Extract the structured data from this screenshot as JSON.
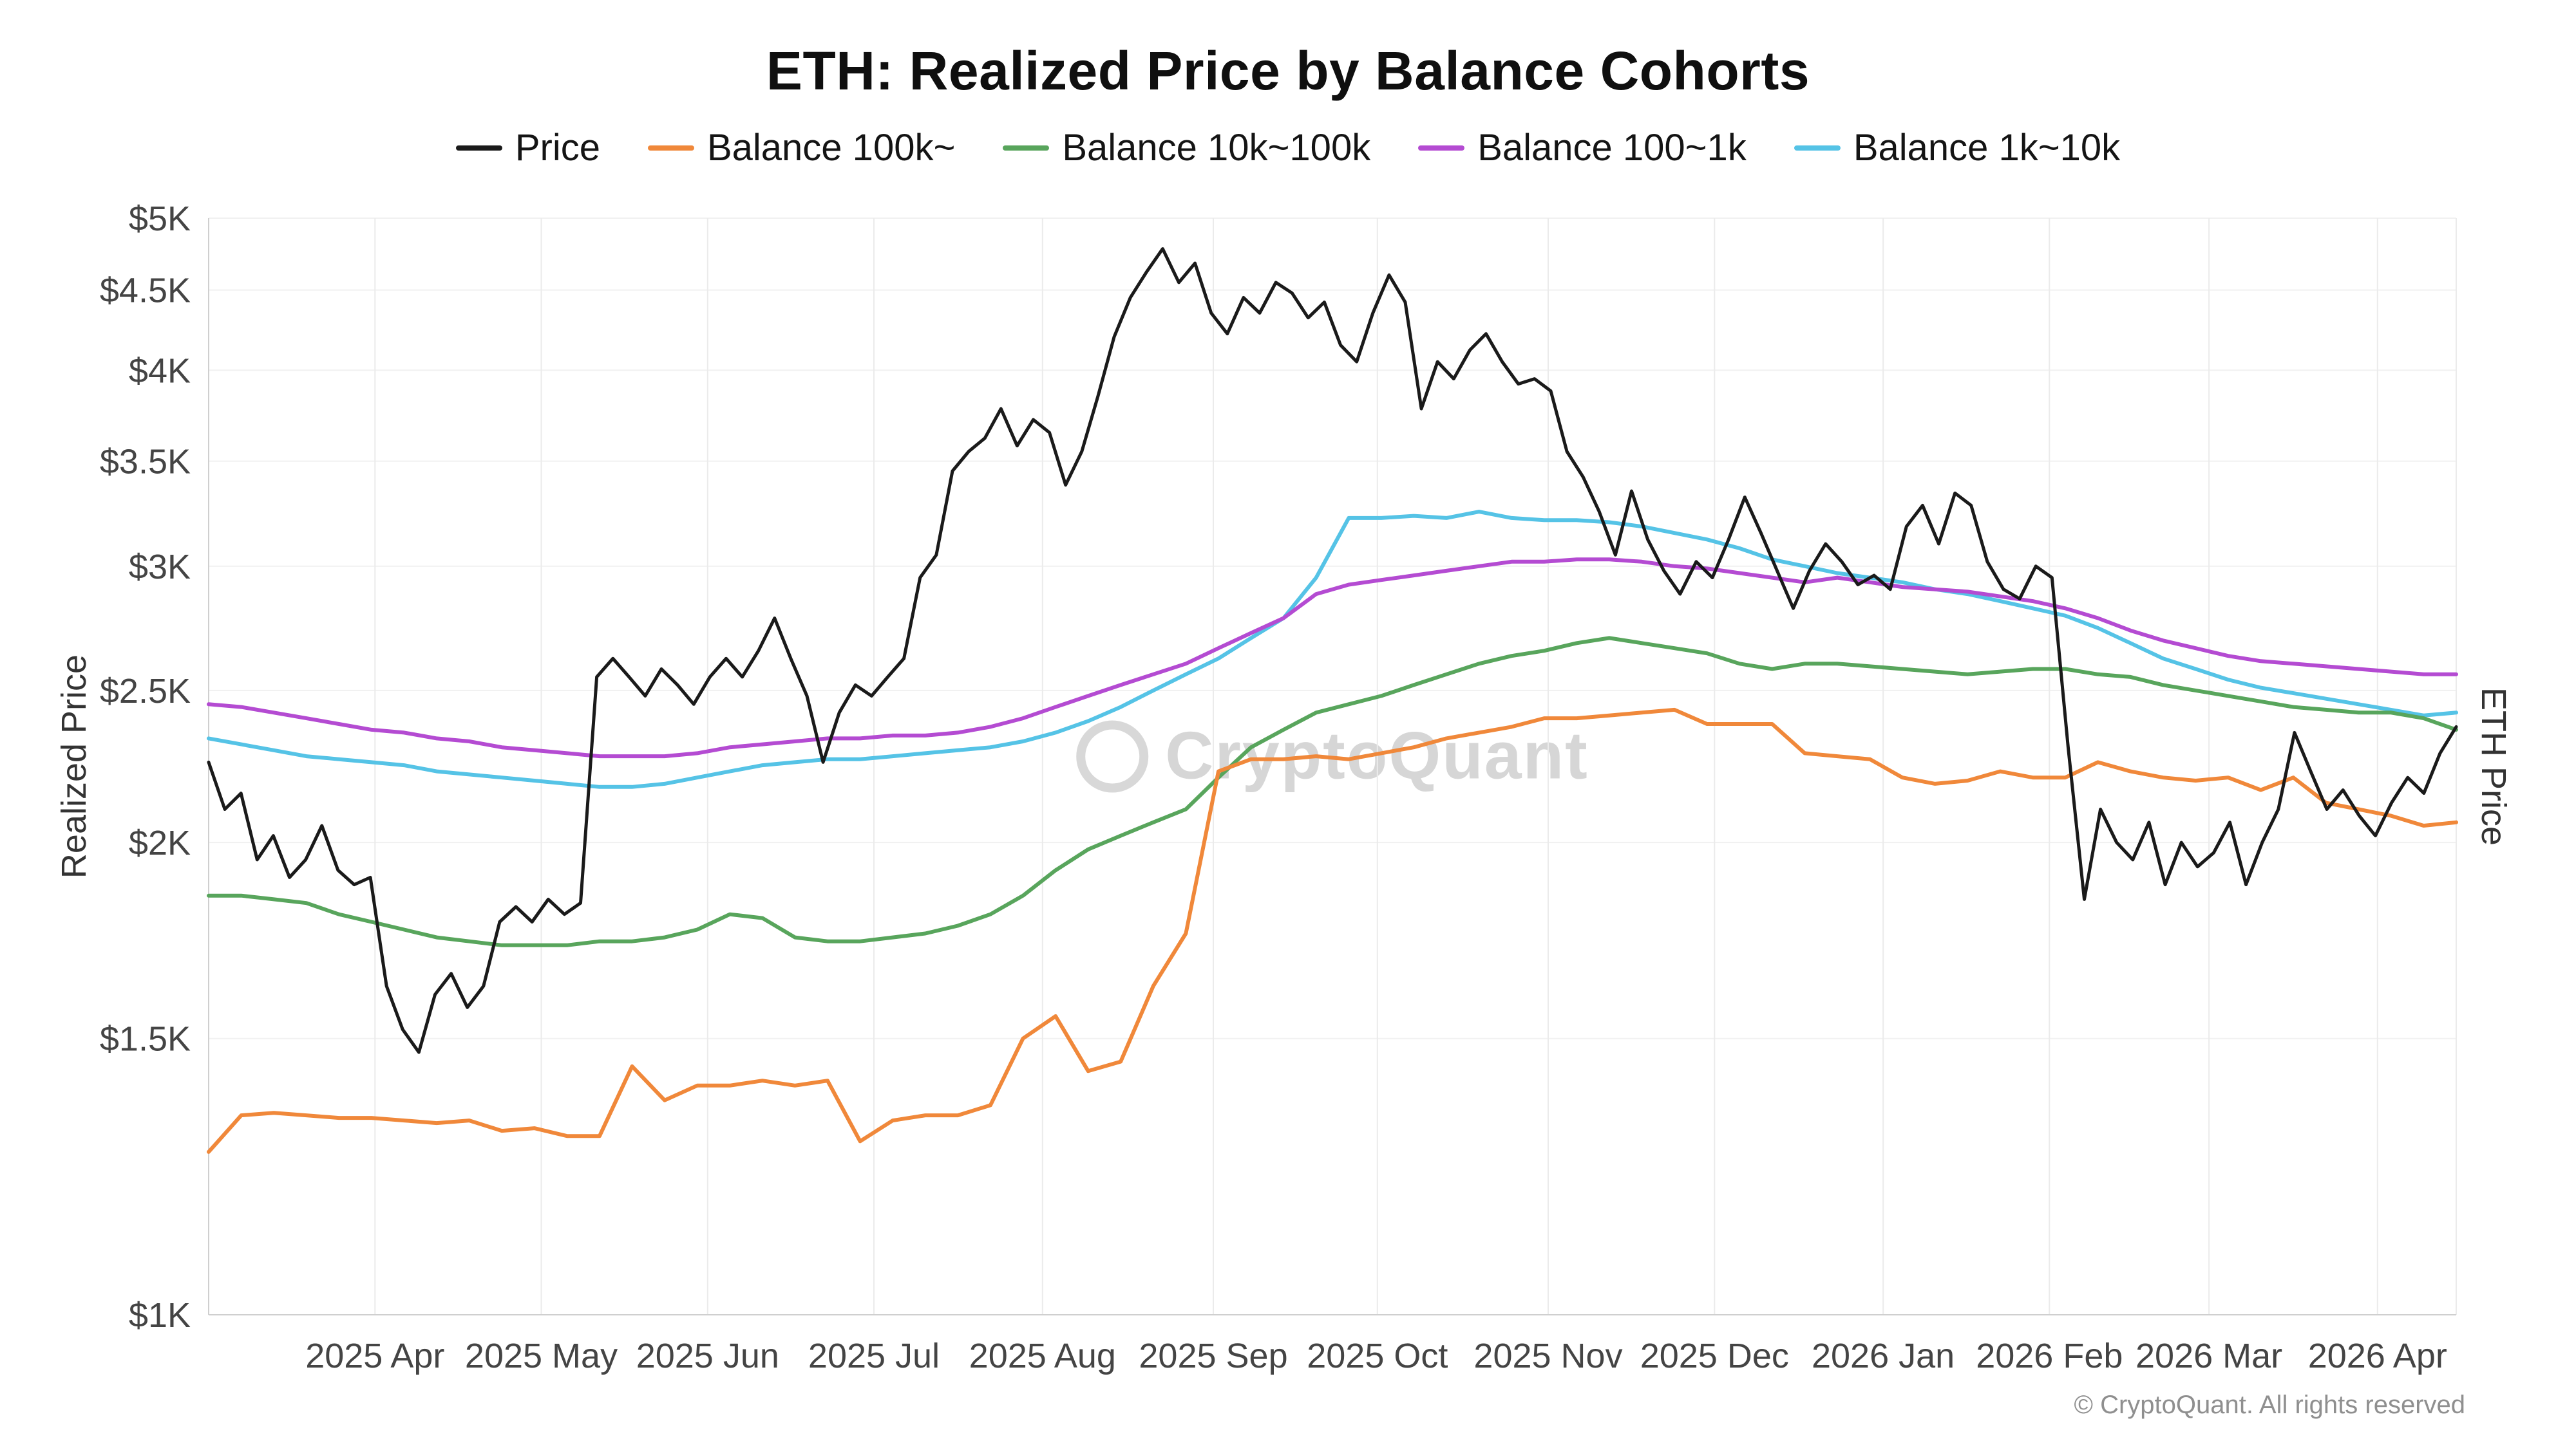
{
  "page": {
    "watermark": "CryptoQuant",
    "footer": "© CryptoQuant. All rights reserved"
  },
  "chart_data": {
    "type": "line",
    "title": "ETH: Realized Price by Balance Cohorts",
    "ylabel": "Realized Price",
    "ylabel_right": "ETH Price",
    "xlabel": "",
    "y_scale": "log",
    "ylim": [
      1000,
      5000
    ],
    "units": "USD, series values in thousands, uniformly sampled across x_range",
    "x_range": [
      "2025 Mar",
      "2026 Apr (mid)"
    ],
    "grid": true,
    "legend_position": "top",
    "y_ticks": [
      {
        "value": 5000,
        "label": "$5K"
      },
      {
        "value": 4500,
        "label": "$4.5K"
      },
      {
        "value": 4000,
        "label": "$4K"
      },
      {
        "value": 3500,
        "label": "$3.5K"
      },
      {
        "value": 3000,
        "label": "$3K"
      },
      {
        "value": 2500,
        "label": "$2.5K"
      },
      {
        "value": 2000,
        "label": "$2K"
      },
      {
        "value": 1500,
        "label": "$1.5K"
      },
      {
        "value": 1000,
        "label": "$1K"
      }
    ],
    "x_ticks": [
      {
        "pos": 0.074,
        "label": "2025 Apr"
      },
      {
        "pos": 0.148,
        "label": "2025 May"
      },
      {
        "pos": 0.222,
        "label": "2025 Jun"
      },
      {
        "pos": 0.296,
        "label": "2025 Jul"
      },
      {
        "pos": 0.371,
        "label": "2025 Aug"
      },
      {
        "pos": 0.447,
        "label": "2025 Sep"
      },
      {
        "pos": 0.52,
        "label": "2025 Oct"
      },
      {
        "pos": 0.596,
        "label": "2025 Nov"
      },
      {
        "pos": 0.67,
        "label": "2025 Dec"
      },
      {
        "pos": 0.745,
        "label": "2026 Jan"
      },
      {
        "pos": 0.819,
        "label": "2026 Feb"
      },
      {
        "pos": 0.89,
        "label": "2026 Mar"
      },
      {
        "pos": 0.965,
        "label": "2026 Apr"
      }
    ],
    "series": [
      {
        "name": "Price",
        "color": "#1a1a1a",
        "width": 5,
        "values": [
          2.25,
          2.1,
          2.15,
          1.95,
          2.02,
          1.9,
          1.95,
          2.05,
          1.92,
          1.88,
          1.9,
          1.62,
          1.52,
          1.47,
          1.6,
          1.65,
          1.57,
          1.62,
          1.78,
          1.82,
          1.78,
          1.84,
          1.8,
          1.83,
          2.55,
          2.62,
          2.55,
          2.48,
          2.58,
          2.52,
          2.45,
          2.55,
          2.62,
          2.55,
          2.65,
          2.78,
          2.62,
          2.48,
          2.25,
          2.42,
          2.52,
          2.48,
          2.55,
          2.62,
          2.95,
          3.05,
          3.45,
          3.55,
          3.62,
          3.78,
          3.58,
          3.72,
          3.65,
          3.38,
          3.55,
          3.85,
          4.2,
          4.45,
          4.62,
          4.78,
          4.55,
          4.68,
          4.35,
          4.22,
          4.45,
          4.35,
          4.55,
          4.48,
          4.32,
          4.42,
          4.15,
          4.05,
          4.35,
          4.6,
          4.42,
          3.78,
          4.05,
          3.95,
          4.12,
          4.22,
          4.05,
          3.92,
          3.95,
          3.88,
          3.55,
          3.42,
          3.25,
          3.05,
          3.35,
          3.12,
          2.98,
          2.88,
          3.02,
          2.95,
          3.12,
          3.32,
          3.15,
          2.98,
          2.82,
          2.98,
          3.1,
          3.02,
          2.92,
          2.96,
          2.9,
          3.18,
          3.28,
          3.1,
          3.34,
          3.28,
          3.02,
          2.9,
          2.86,
          3.0,
          2.95,
          2.3,
          1.84,
          2.1,
          2.0,
          1.95,
          2.06,
          1.88,
          2.0,
          1.93,
          1.97,
          2.06,
          1.88,
          2.0,
          2.1,
          2.35,
          2.22,
          2.1,
          2.16,
          2.08,
          2.02,
          2.12,
          2.2,
          2.15,
          2.28,
          2.37
        ]
      },
      {
        "name": "Balance 100k~",
        "color": "#f0883a",
        "width": 6,
        "values": [
          1.27,
          1.34,
          1.345,
          1.34,
          1.335,
          1.335,
          1.33,
          1.325,
          1.33,
          1.31,
          1.315,
          1.3,
          1.3,
          1.44,
          1.37,
          1.4,
          1.4,
          1.41,
          1.4,
          1.41,
          1.29,
          1.33,
          1.34,
          1.34,
          1.36,
          1.5,
          1.55,
          1.43,
          1.45,
          1.62,
          1.75,
          2.22,
          2.26,
          2.26,
          2.27,
          2.26,
          2.28,
          2.3,
          2.33,
          2.35,
          2.37,
          2.4,
          2.4,
          2.41,
          2.42,
          2.43,
          2.38,
          2.38,
          2.38,
          2.28,
          2.27,
          2.26,
          2.2,
          2.18,
          2.19,
          2.22,
          2.2,
          2.2,
          2.25,
          2.22,
          2.2,
          2.19,
          2.2,
          2.16,
          2.2,
          2.12,
          2.1,
          2.08,
          2.05,
          2.06
        ]
      },
      {
        "name": "Balance 10k~100k",
        "color": "#58a55c",
        "width": 6,
        "values": [
          1.85,
          1.85,
          1.84,
          1.83,
          1.8,
          1.78,
          1.76,
          1.74,
          1.73,
          1.72,
          1.72,
          1.72,
          1.73,
          1.73,
          1.74,
          1.76,
          1.8,
          1.79,
          1.74,
          1.73,
          1.73,
          1.74,
          1.75,
          1.77,
          1.8,
          1.85,
          1.92,
          1.98,
          2.02,
          2.06,
          2.1,
          2.2,
          2.3,
          2.36,
          2.42,
          2.45,
          2.48,
          2.52,
          2.56,
          2.6,
          2.63,
          2.65,
          2.68,
          2.7,
          2.68,
          2.66,
          2.64,
          2.6,
          2.58,
          2.6,
          2.6,
          2.59,
          2.58,
          2.57,
          2.56,
          2.57,
          2.58,
          2.58,
          2.56,
          2.55,
          2.52,
          2.5,
          2.48,
          2.46,
          2.44,
          2.43,
          2.42,
          2.42,
          2.4,
          2.36
        ]
      },
      {
        "name": "Balance 100~1k",
        "color": "#b44bd2",
        "width": 6,
        "values": [
          2.45,
          2.44,
          2.42,
          2.4,
          2.38,
          2.36,
          2.35,
          2.33,
          2.32,
          2.3,
          2.29,
          2.28,
          2.27,
          2.27,
          2.27,
          2.28,
          2.3,
          2.31,
          2.32,
          2.33,
          2.33,
          2.34,
          2.34,
          2.35,
          2.37,
          2.4,
          2.44,
          2.48,
          2.52,
          2.56,
          2.6,
          2.66,
          2.72,
          2.78,
          2.88,
          2.92,
          2.94,
          2.96,
          2.98,
          3.0,
          3.02,
          3.02,
          3.03,
          3.03,
          3.02,
          3.0,
          2.99,
          2.97,
          2.95,
          2.93,
          2.95,
          2.93,
          2.91,
          2.9,
          2.89,
          2.87,
          2.85,
          2.82,
          2.78,
          2.73,
          2.69,
          2.66,
          2.63,
          2.61,
          2.6,
          2.59,
          2.58,
          2.57,
          2.56,
          2.56
        ]
      },
      {
        "name": "Balance 1k~10k",
        "color": "#55c3e6",
        "width": 6,
        "values": [
          2.33,
          2.31,
          2.29,
          2.27,
          2.26,
          2.25,
          2.24,
          2.22,
          2.21,
          2.2,
          2.19,
          2.18,
          2.17,
          2.17,
          2.18,
          2.2,
          2.22,
          2.24,
          2.25,
          2.26,
          2.26,
          2.27,
          2.28,
          2.29,
          2.3,
          2.32,
          2.35,
          2.39,
          2.44,
          2.5,
          2.56,
          2.62,
          2.7,
          2.78,
          2.95,
          3.22,
          3.22,
          3.23,
          3.22,
          3.25,
          3.22,
          3.21,
          3.21,
          3.2,
          3.18,
          3.15,
          3.12,
          3.08,
          3.03,
          3.0,
          2.97,
          2.95,
          2.93,
          2.9,
          2.88,
          2.85,
          2.82,
          2.79,
          2.74,
          2.68,
          2.62,
          2.58,
          2.54,
          2.51,
          2.49,
          2.47,
          2.45,
          2.43,
          2.41,
          2.42
        ]
      }
    ]
  }
}
